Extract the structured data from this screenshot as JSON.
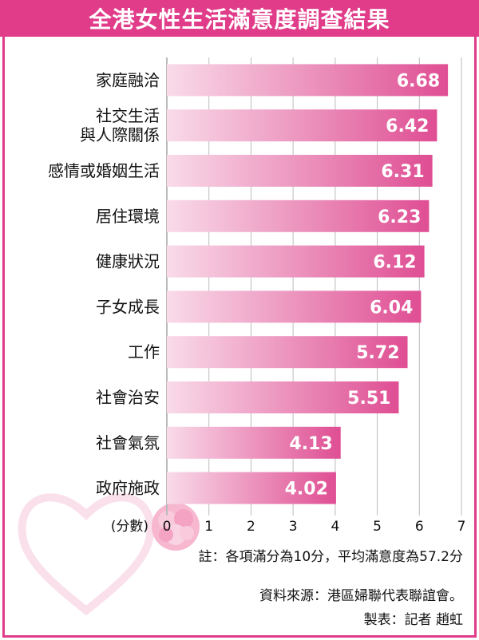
{
  "title": "全港女性生活滿意度調查結果",
  "chart_data": {
    "type": "bar",
    "orientation": "horizontal",
    "categories": [
      "家庭融洽",
      "社交生活\n與人際關係",
      "感情或婚姻生活",
      "居住環境",
      "健康狀況",
      "子女成長",
      "工作",
      "社會治安",
      "社會氣氛",
      "政府施政"
    ],
    "values": [
      6.68,
      6.42,
      6.31,
      6.23,
      6.12,
      6.04,
      5.72,
      5.51,
      4.13,
      4.02
    ],
    "value_labels": [
      "6.68",
      "6.42",
      "6.31",
      "6.23",
      "6.12",
      "6.04",
      "5.72",
      "5.51",
      "4.13",
      "4.02"
    ],
    "xlabel": "(分數)",
    "xlim": [
      0,
      7
    ],
    "xticks": [
      "0",
      "1",
      "2",
      "3",
      "4",
      "5",
      "6",
      "7"
    ],
    "grid": true,
    "bar_color_start": "#f9dbe9",
    "bar_color_end": "#df4e93"
  },
  "notes": {
    "note": "註：各項滿分為10分，平均滿意度為57.2分",
    "source": "資料來源：港區婦聯代表聯誼會。",
    "credit": "製表：記者 趙虹"
  },
  "colors": {
    "accent": "#e03c8a"
  }
}
